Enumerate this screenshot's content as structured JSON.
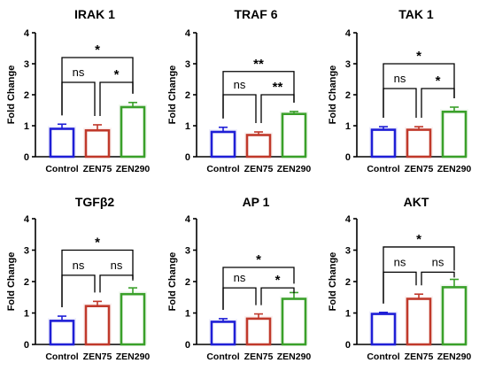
{
  "chart_data": [
    {
      "type": "bar",
      "title": "IRAK 1",
      "ylabel": "Fold Change",
      "categories": [
        "Control",
        "ZEN75",
        "ZEN290"
      ],
      "colors": [
        "#1f1fd6",
        "#c0392b",
        "#3aa02a"
      ],
      "values": [
        0.9,
        0.85,
        1.6
      ],
      "errors": [
        0.15,
        0.18,
        0.15
      ],
      "ylim": [
        0,
        4
      ],
      "yticks": [
        "0",
        "1",
        "2",
        "3",
        "4"
      ],
      "significance": [
        {
          "from": 0,
          "to": 1,
          "label": "ns",
          "level": 2.4
        },
        {
          "from": 1,
          "to": 2,
          "label": "*",
          "level": 2.4
        },
        {
          "from": 0,
          "to": 2,
          "label": "*",
          "level": 3.2
        }
      ]
    },
    {
      "type": "bar",
      "title": "TRAF 6",
      "ylabel": "Fold Change",
      "categories": [
        "Control",
        "ZEN75",
        "ZEN290"
      ],
      "colors": [
        "#1f1fd6",
        "#c0392b",
        "#3aa02a"
      ],
      "values": [
        0.8,
        0.7,
        1.38
      ],
      "errors": [
        0.15,
        0.1,
        0.08
      ],
      "ylim": [
        0,
        4
      ],
      "yticks": [
        "0",
        "1",
        "2",
        "3",
        "4"
      ],
      "significance": [
        {
          "from": 0,
          "to": 1,
          "label": "ns",
          "level": 2.0
        },
        {
          "from": 1,
          "to": 2,
          "label": "**",
          "level": 2.0
        },
        {
          "from": 0,
          "to": 2,
          "label": "**",
          "level": 2.75
        }
      ]
    },
    {
      "type": "bar",
      "title": "TAK 1",
      "ylabel": "Fold Change",
      "categories": [
        "Control",
        "ZEN75",
        "ZEN290"
      ],
      "colors": [
        "#1f1fd6",
        "#c0392b",
        "#3aa02a"
      ],
      "values": [
        0.87,
        0.87,
        1.45
      ],
      "errors": [
        0.1,
        0.1,
        0.15
      ],
      "ylim": [
        0,
        4
      ],
      "yticks": [
        "0",
        "1",
        "2",
        "3",
        "4"
      ],
      "significance": [
        {
          "from": 0,
          "to": 1,
          "label": "ns",
          "level": 2.2
        },
        {
          "from": 1,
          "to": 2,
          "label": "*",
          "level": 2.2
        },
        {
          "from": 0,
          "to": 2,
          "label": "*",
          "level": 3.0
        }
      ]
    },
    {
      "type": "bar",
      "title": "TGFβ2",
      "ylabel": "Fold Change",
      "categories": [
        "Control",
        "ZEN75",
        "ZEN290"
      ],
      "colors": [
        "#1f1fd6",
        "#c0392b",
        "#3aa02a"
      ],
      "values": [
        0.75,
        1.22,
        1.6
      ],
      "errors": [
        0.15,
        0.15,
        0.2
      ],
      "ylim": [
        0,
        4
      ],
      "yticks": [
        "0",
        "1",
        "2",
        "3",
        "4"
      ],
      "significance": [
        {
          "from": 0,
          "to": 1,
          "label": "ns",
          "level": 2.2
        },
        {
          "from": 1,
          "to": 2,
          "label": "ns",
          "level": 2.2
        },
        {
          "from": 0,
          "to": 2,
          "label": "*",
          "level": 3.0
        }
      ]
    },
    {
      "type": "bar",
      "title": "AP 1",
      "ylabel": "Fold Change",
      "categories": [
        "Control",
        "ZEN75",
        "ZEN290"
      ],
      "colors": [
        "#1f1fd6",
        "#c0392b",
        "#3aa02a"
      ],
      "values": [
        0.72,
        0.82,
        1.45
      ],
      "errors": [
        0.1,
        0.15,
        0.2
      ],
      "ylim": [
        0,
        4
      ],
      "yticks": [
        "0",
        "1",
        "2",
        "3",
        "4"
      ],
      "significance": [
        {
          "from": 0,
          "to": 1,
          "label": "ns",
          "level": 1.8
        },
        {
          "from": 1,
          "to": 2,
          "label": "*",
          "level": 1.8
        },
        {
          "from": 0,
          "to": 2,
          "label": "*",
          "level": 2.45
        }
      ]
    },
    {
      "type": "bar",
      "title": "AKT",
      "ylabel": "Fold Change",
      "categories": [
        "Control",
        "ZEN75",
        "ZEN290"
      ],
      "colors": [
        "#1f1fd6",
        "#c0392b",
        "#3aa02a"
      ],
      "values": [
        0.97,
        1.45,
        1.82
      ],
      "errors": [
        0.05,
        0.15,
        0.25
      ],
      "ylim": [
        0,
        4
      ],
      "yticks": [
        "0",
        "1",
        "2",
        "3",
        "4"
      ],
      "significance": [
        {
          "from": 0,
          "to": 1,
          "label": "ns",
          "level": 2.3
        },
        {
          "from": 1,
          "to": 2,
          "label": "ns",
          "level": 2.3
        },
        {
          "from": 0,
          "to": 2,
          "label": "*",
          "level": 3.1
        }
      ]
    }
  ]
}
